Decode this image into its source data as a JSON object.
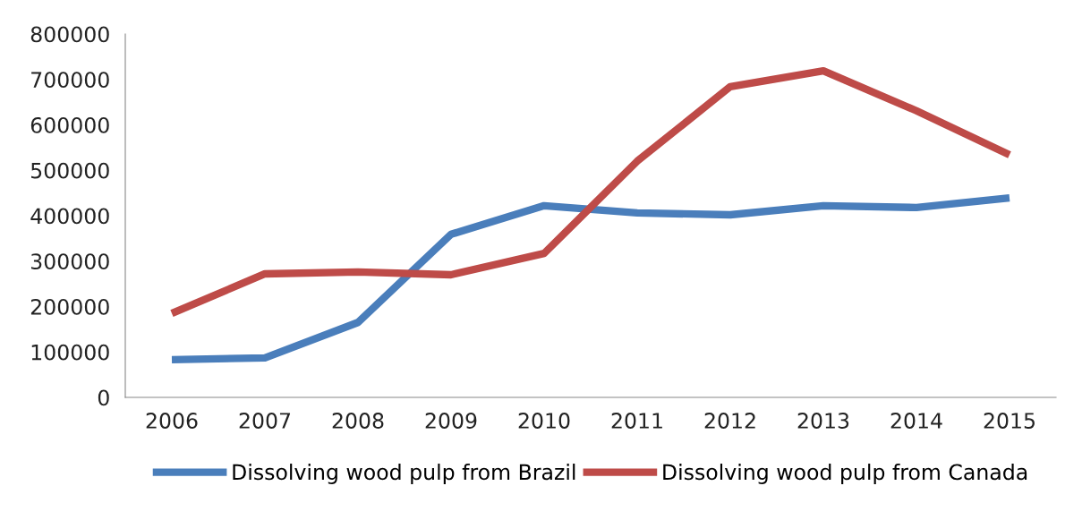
{
  "chart_data": {
    "type": "line",
    "categories": [
      "2006",
      "2007",
      "2008",
      "2009",
      "2010",
      "2011",
      "2012",
      "2013",
      "2014",
      "2015"
    ],
    "series": [
      {
        "name": "Dissolving wood pulp from Brazil",
        "color": "#4a7ebb",
        "values": [
          83000,
          87000,
          165000,
          359000,
          422000,
          406000,
          402000,
          422000,
          418000,
          439000
        ]
      },
      {
        "name": "Dissolving wood pulp from Canada",
        "color": "#be4b48",
        "values": [
          185000,
          272000,
          276000,
          270000,
          317000,
          520000,
          684000,
          719000,
          631000,
          534000
        ]
      }
    ],
    "ylim": [
      0,
      800000
    ],
    "yticks": [
      0,
      100000,
      200000,
      300000,
      400000,
      500000,
      600000,
      700000,
      800000
    ],
    "grid": false,
    "legend": "bottom",
    "marker": "none",
    "line_style": "solid"
  }
}
